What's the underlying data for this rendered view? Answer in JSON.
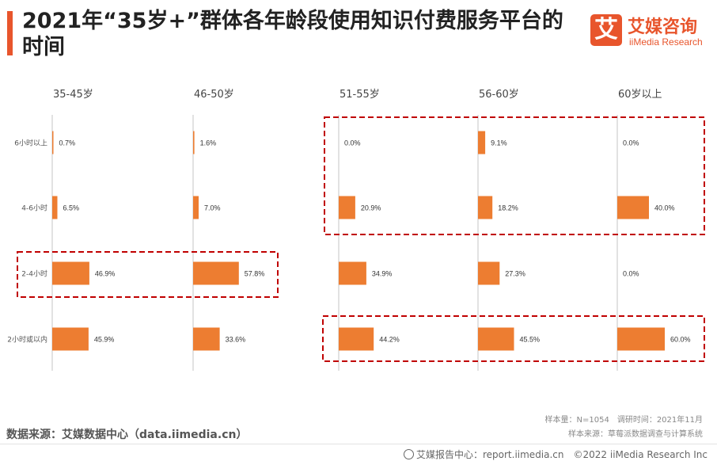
{
  "header": {
    "title": "2021年“35岁+”群体各年龄段使用知识付费服务平台的时间",
    "logo_mark": "艾",
    "logo_cn": "艾媒咨询",
    "logo_en": "iiMedia Research"
  },
  "chart_data": {
    "type": "bar",
    "orientation": "horizontal",
    "categories": [
      "6小时以上",
      "4-6小时",
      "2-4小时",
      "2小时或以内"
    ],
    "series": [
      {
        "name": "35-45岁",
        "values": [
          0.7,
          6.5,
          46.9,
          45.9
        ]
      },
      {
        "name": "46-50岁",
        "values": [
          1.6,
          7.0,
          57.8,
          33.6
        ]
      },
      {
        "name": "51-55岁",
        "values": [
          0.0,
          20.9,
          34.9,
          44.2
        ]
      },
      {
        "name": "56-60岁",
        "values": [
          9.1,
          18.2,
          27.3,
          45.5
        ]
      },
      {
        "name": "60岁以上",
        "values": [
          0.0,
          40.0,
          0.0,
          60.0
        ]
      }
    ],
    "value_suffix": "%",
    "xlim": [
      0,
      100
    ],
    "color": "#ed7d31",
    "highlight_color": "#c00000"
  },
  "footer": {
    "source": "数据来源：艾媒数据中心（data.iimedia.cn）",
    "sample": "样本量：N=1054　调研时间：2021年11月",
    "sample_source": "样本来源：草莓派数据调查与计算系统",
    "copyright": "艾媒报告中心：report.iimedia.cn　©2022  iiMedia Research  Inc"
  }
}
